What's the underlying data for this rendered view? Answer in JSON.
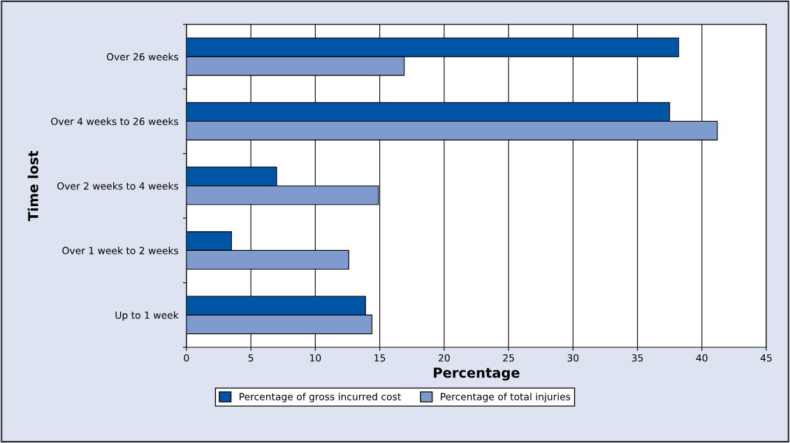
{
  "chart_data": {
    "type": "bar",
    "orientation": "horizontal",
    "xlabel": "Percentage",
    "ylabel": "Time lost",
    "categories": [
      "Over 26 weeks",
      "Over 4 weeks to 26 weeks",
      "Over 2 weeks to 4 weeks",
      "Over 1 week to 2 weeks",
      "Up to 1 week"
    ],
    "series": [
      {
        "name": "Percentage of gross incurred cost",
        "color": "#0055a5",
        "values": [
          38.2,
          37.5,
          7.0,
          3.5,
          13.9
        ]
      },
      {
        "name": "Percentage of total injuries",
        "color": "#7f9acc",
        "values": [
          16.9,
          41.2,
          14.9,
          12.6,
          14.4
        ]
      }
    ],
    "xlim": [
      0,
      45
    ],
    "xticks": [
      0,
      5,
      10,
      15,
      20,
      25,
      30,
      35,
      40,
      45
    ],
    "grid": "x",
    "legend": "bottom"
  }
}
